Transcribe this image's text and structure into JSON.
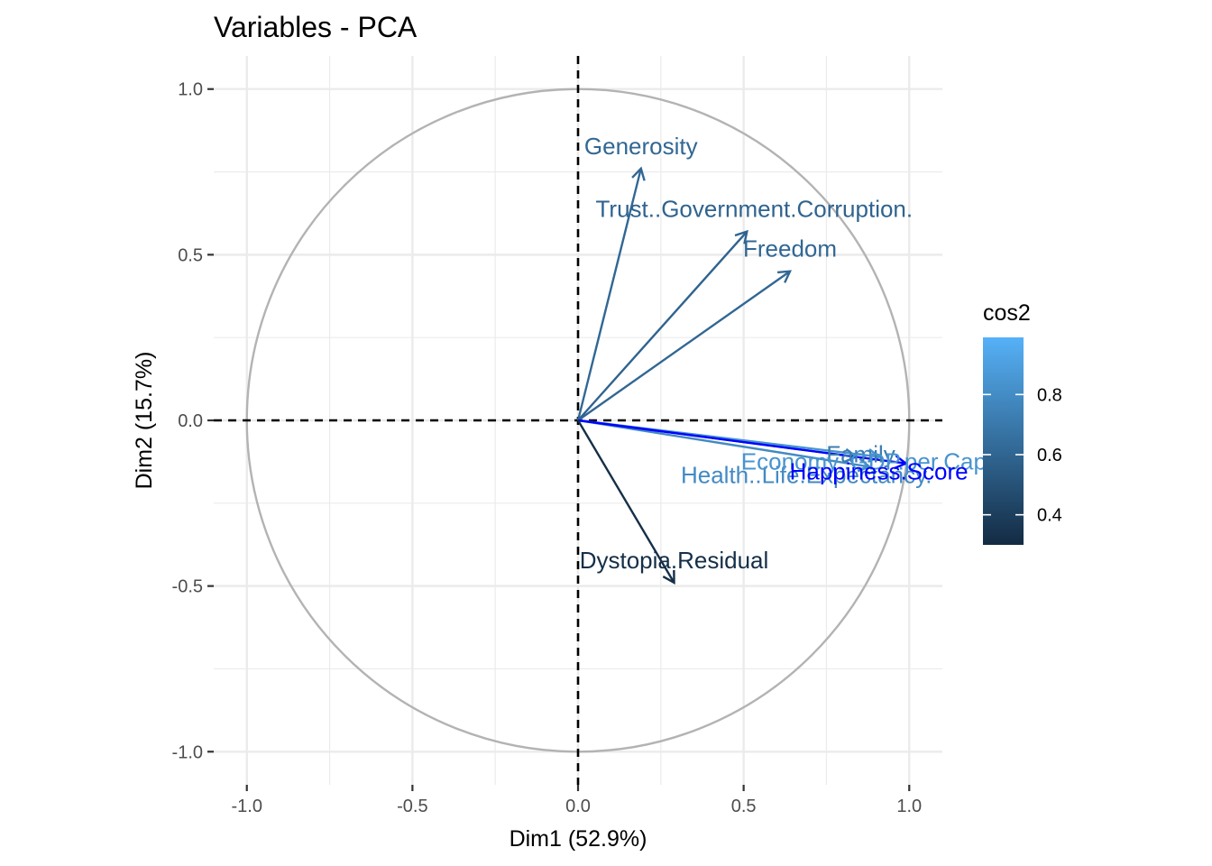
{
  "chart_data": {
    "type": "scatter",
    "title": "Variables - PCA",
    "xlabel": "Dim1 (52.9%)",
    "ylabel": "Dim2 (15.7%)",
    "xlim": [
      -1.1,
      1.1
    ],
    "ylim": [
      -1.1,
      1.1
    ],
    "x_ticks": [
      -1.0,
      -0.5,
      0.0,
      0.5,
      1.0
    ],
    "x_tick_labels": [
      "-1.0",
      "-0.5",
      "0.0",
      "0.5",
      "1.0"
    ],
    "y_ticks": [
      1.0,
      0.5,
      0.0,
      -0.5,
      -1.0
    ],
    "y_tick_labels": [
      "1.0",
      "0.5",
      "0.0",
      "-0.5",
      "-1.0"
    ],
    "grid": true,
    "correlation_circle": true,
    "reference_lines": [
      0,
      0
    ],
    "variables": [
      {
        "name": "Generosity",
        "x": 0.19,
        "y": 0.76,
        "cos2": 0.61
      },
      {
        "name": "Trust..Government.Corruption.",
        "x": 0.51,
        "y": 0.57,
        "cos2": 0.59
      },
      {
        "name": "Freedom",
        "x": 0.64,
        "y": 0.45,
        "cos2": 0.61
      },
      {
        "name": "Family",
        "x": 0.84,
        "y": -0.11,
        "cos2": 0.72
      },
      {
        "name": "Health..Life.Expectancy.",
        "x": 0.88,
        "y": -0.14,
        "cos2": 0.79
      },
      {
        "name": "Economy..GDP.per.Capita.",
        "x": 0.91,
        "y": -0.11,
        "cos2": 0.84
      },
      {
        "name": "Happiness.Score",
        "x": 0.99,
        "y": -0.13,
        "cos2": 0.99
      },
      {
        "name": "Dystopia.Residual",
        "x": 0.29,
        "y": -0.49,
        "cos2": 0.32
      }
    ],
    "legend": {
      "title": "cos2",
      "position": "right",
      "min": 0.3,
      "max": 0.99,
      "ticks": [
        0.4,
        0.6,
        0.8
      ],
      "tick_labels": [
        "0.4",
        "0.6",
        "0.8"
      ],
      "colors": [
        "#132b43",
        "#56b1f7"
      ]
    },
    "colors": {
      "circle": "#b3b3b3",
      "grid": "#ebebeb",
      "reference": "#000000"
    }
  }
}
